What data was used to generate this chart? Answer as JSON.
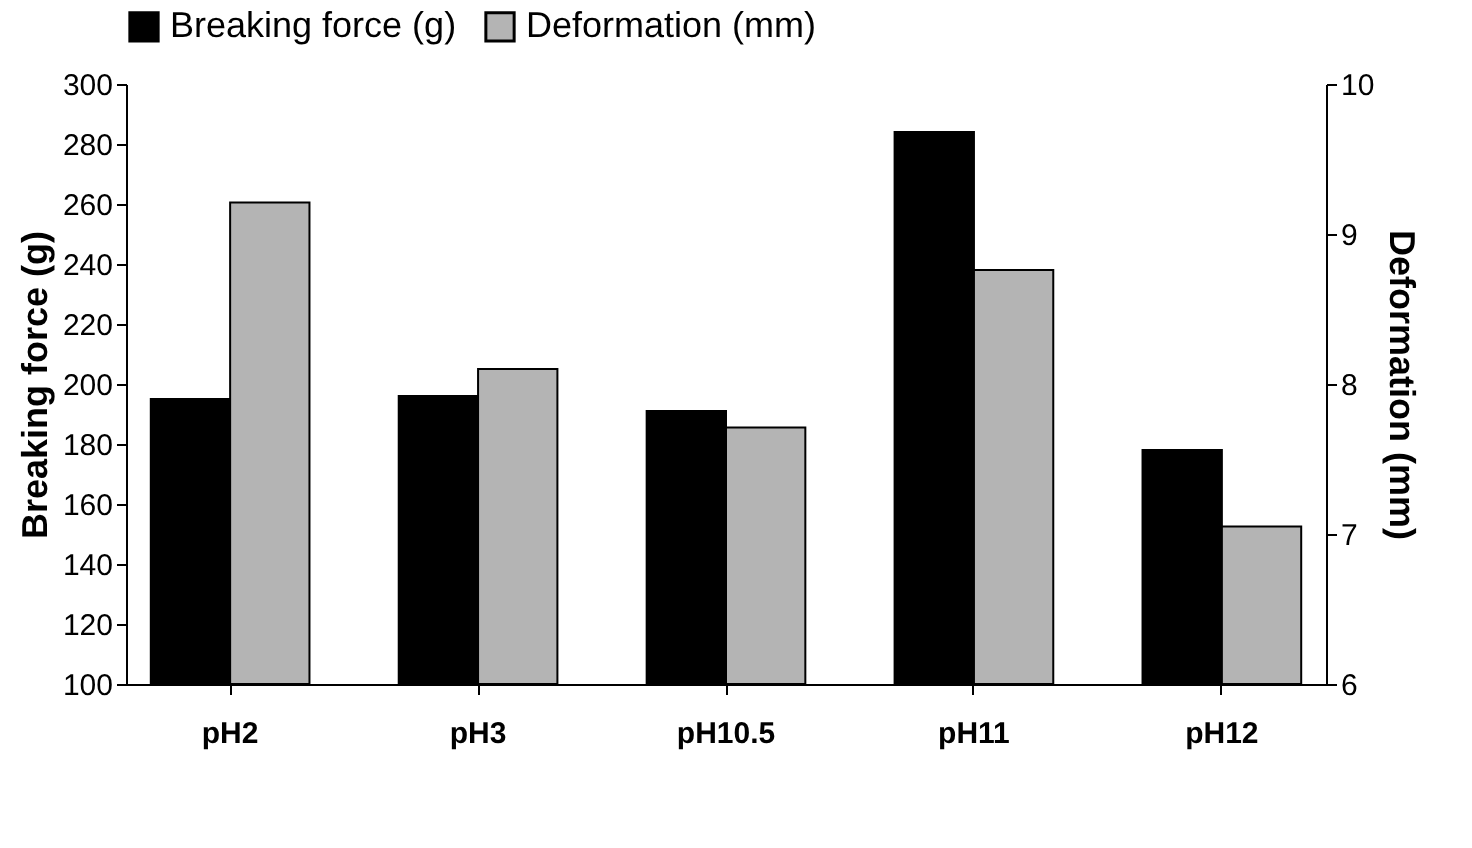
{
  "chart_data": {
    "type": "bar",
    "categories": [
      "pH2",
      "pH3",
      "pH10.5",
      "pH11",
      "pH12"
    ],
    "series": [
      {
        "name": "Breaking force (g)",
        "color": "#000000",
        "values": [
          195,
          196,
          191,
          284,
          178
        ]
      },
      {
        "name": "Deformation (mm)",
        "color": "#b4b4b4",
        "values": [
          9.21,
          8.1,
          7.71,
          8.76,
          7.05
        ],
        "axis": "y2"
      }
    ],
    "ylabel": "Breaking force (g)",
    "y2label": "Deformation (mm)",
    "ylim": [
      100,
      300
    ],
    "yticks": [
      100,
      120,
      140,
      160,
      180,
      200,
      220,
      240,
      260,
      280,
      300
    ],
    "y2lim": [
      6,
      10
    ],
    "y2ticks": [
      6,
      7,
      8,
      9,
      10
    ],
    "legend": "top",
    "grid": false
  }
}
